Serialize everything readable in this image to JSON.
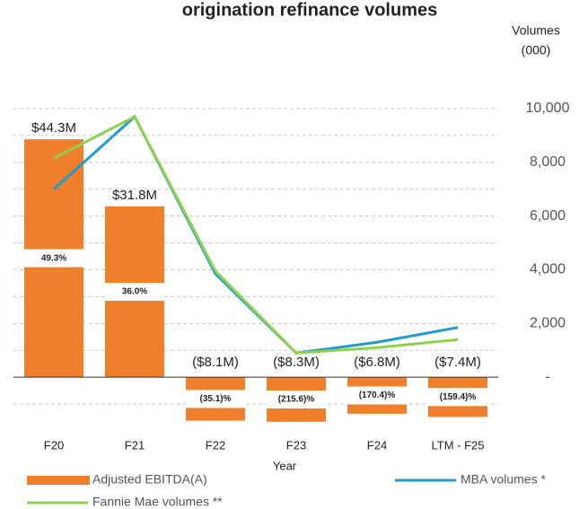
{
  "chart_data": {
    "type": "bar_line",
    "title": "origination refinance volumes",
    "y2_label_1": "Volumes",
    "y2_label_2": "(000)",
    "x_label": "Year",
    "categories": [
      "F20",
      "F21",
      "F22",
      "F23",
      "F24",
      "LTM - F25"
    ],
    "ylim": [
      -10,
      50
    ],
    "y2lim": [
      -2000,
      10000
    ],
    "y2ticks": [
      {
        "value": 10000,
        "label": "10,000"
      },
      {
        "value": 8000,
        "label": "8,000"
      },
      {
        "value": 6000,
        "label": "6,000"
      },
      {
        "value": 4000,
        "label": "4,000"
      },
      {
        "value": 2000,
        "label": "2,000"
      },
      {
        "value": 0,
        "label": "-"
      }
    ],
    "gridlines": [
      -1000,
      1000,
      2000,
      3000,
      4000,
      5000,
      6000,
      7000,
      8000,
      9000,
      10000
    ],
    "series": [
      {
        "name": "Adjusted EBITDA(A)",
        "type": "bar",
        "color": "#f07f2b",
        "values": [
          44.3,
          31.8,
          -8.1,
          -8.3,
          -6.8,
          -7.4
        ],
        "value_labels": [
          "$44.3M",
          "$31.8M",
          "($8.1M)",
          "($8.3M)",
          "($6.8M)",
          "($7.4M)"
        ],
        "margins": [
          49.3,
          36.0,
          -35.1,
          -215.6,
          -170.4,
          -159.4
        ],
        "margin_labels": [
          "49.3%",
          "36.0%",
          "(35.1)%",
          "(215.6)%",
          "(170.4)%",
          "(159.4)%"
        ]
      },
      {
        "name": "MBA volumes *",
        "type": "line",
        "axis": "y2",
        "color": "#1f9bd0",
        "values": [
          7000,
          9700,
          3850,
          900,
          1300,
          1850
        ]
      },
      {
        "name": "Fannie Mae volumes **",
        "type": "line",
        "axis": "y2",
        "color": "#8fd14f",
        "values": [
          8150,
          9700,
          3950,
          900,
          1100,
          1400
        ]
      }
    ]
  }
}
